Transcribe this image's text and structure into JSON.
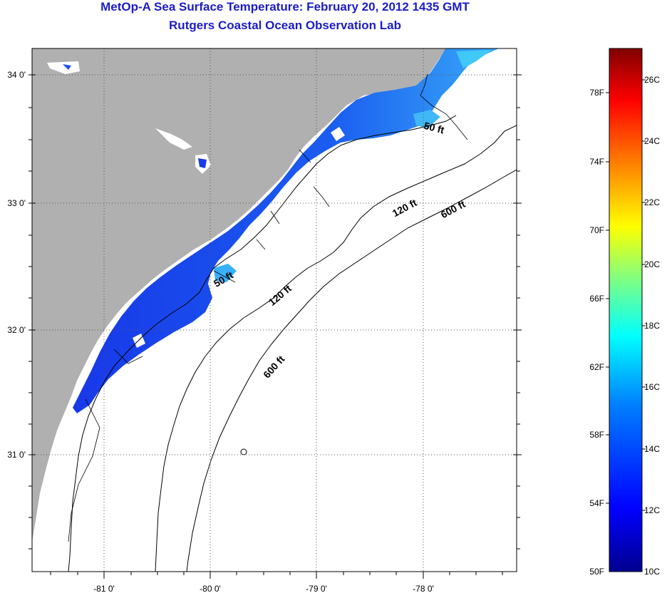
{
  "title": "MetOp-A Sea Surface Temperature:  February 20, 2012 1435 GMT",
  "subtitle": "Rutgers Coastal Ocean Observation Lab",
  "latitude_labels": [
    "34 0'",
    "33 0'",
    "32 0'",
    "31 0'"
  ],
  "longitude_labels": [
    "-81 0'",
    "-80 0'",
    "-79 0'",
    "-78 0'"
  ],
  "contour_labels": [
    "50 ft",
    "50 ft",
    "120 ft",
    "120 ft",
    "600 ft",
    "600 ft"
  ],
  "colorbar": {
    "fahrenheit_labels": [
      "78F",
      "74F",
      "70F",
      "66F",
      "62F",
      "58F",
      "54F",
      "50F"
    ],
    "celsius_labels": [
      "26C",
      "24C",
      "22C",
      "20C",
      "18C",
      "16C",
      "14C",
      "12C",
      "10C"
    ],
    "colors": [
      "#00008f",
      "#0000ff",
      "#0080ff",
      "#00ffff",
      "#80ff80",
      "#ffff00",
      "#ff8000",
      "#ff0000",
      "#800000"
    ]
  },
  "colors": {
    "land": "#b0b0b0",
    "ocean_no_data": "#ffffff",
    "title": "#1c1cc8"
  }
}
